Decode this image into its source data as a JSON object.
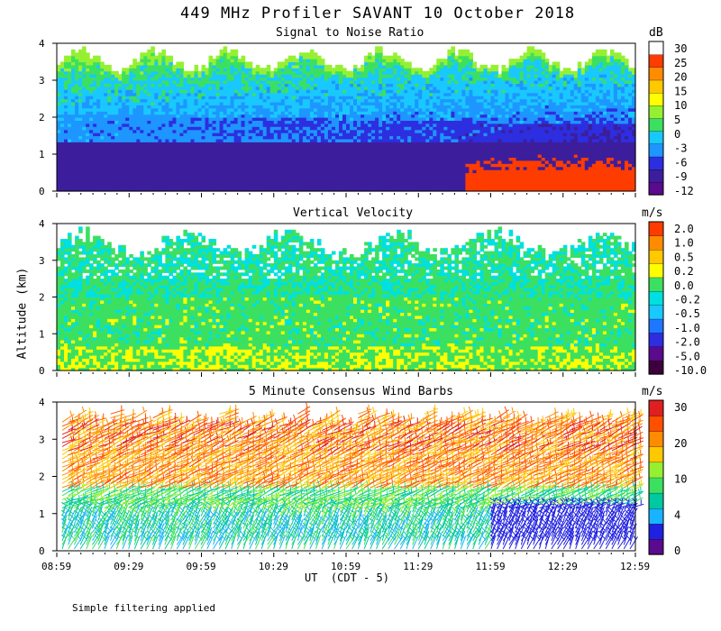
{
  "title": "449 MHz Profiler SAVANT 10 October 2018",
  "ylabel": "Altitude (km)",
  "xlabel": "UT  (CDT - 5)",
  "footnote": "Simple filtering applied",
  "x_ticks": [
    "08:59",
    "09:29",
    "09:59",
    "10:29",
    "10:59",
    "11:29",
    "11:59",
    "12:29",
    "12:59"
  ],
  "y_ticks": [
    "0",
    "1",
    "2",
    "3",
    "4"
  ],
  "colors": {
    "snr": [
      "#5a0a8c",
      "#3c1e9c",
      "#2d2ee0",
      "#1e96ff",
      "#19c8ff",
      "#3ce060",
      "#96f032",
      "#ffff00",
      "#ffc800",
      "#ff8c00",
      "#ff3c00",
      "#ffffff"
    ],
    "vv": [
      "#3c003c",
      "#5a0a8c",
      "#2d2ee0",
      "#1e78ff",
      "#19c8ff",
      "#00e0e0",
      "#3ce060",
      "#ffff00",
      "#ffc800",
      "#ff8c00",
      "#ff3c00"
    ],
    "wind": [
      "#5a0a8c",
      "#2020e0",
      "#19b4ff",
      "#00c8a0",
      "#3ce060",
      "#96f032",
      "#ffc800",
      "#ff8c00",
      "#ff5000",
      "#e02020"
    ]
  },
  "chart_data": [
    {
      "type": "heatmap",
      "title": "Signal to Noise Ratio",
      "unit": "dB",
      "colorbar_labels": [
        "30",
        "25",
        "20",
        "15",
        "10",
        "5",
        "0",
        "-3",
        "-6",
        "-9",
        "-12"
      ],
      "ylim": [
        0,
        4
      ]
    },
    {
      "type": "heatmap",
      "title": "Vertical Velocity",
      "unit": "m/s",
      "colorbar_labels": [
        "2.0",
        "1.0",
        "0.5",
        "0.2",
        "0.0",
        "-0.2",
        "-0.5",
        "-1.0",
        "-2.0",
        "-5.0",
        "-10.0"
      ],
      "ylim": [
        0,
        4
      ]
    },
    {
      "type": "scatter",
      "title": "5 Minute Consensus Wind Barbs",
      "unit": "m/s",
      "colorbar_labels": [
        "30",
        "20",
        "10",
        "4",
        "0"
      ],
      "ylim": [
        0,
        4
      ]
    }
  ]
}
